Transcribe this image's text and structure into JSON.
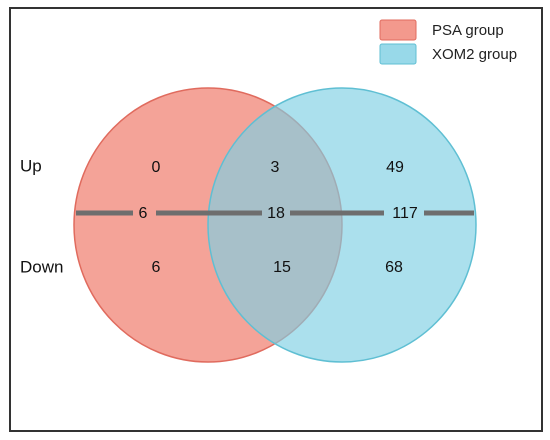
{
  "legend": {
    "items": [
      {
        "label": "PSA group",
        "color": "#F08070",
        "stroke": "#E06B5E"
      },
      {
        "label": "XOM2 group",
        "color": "#7ECFE3",
        "stroke": "#5FBFD3"
      }
    ]
  },
  "rows": {
    "up_label": "Up",
    "down_label": "Down"
  },
  "counts": {
    "up": {
      "psa_only": "0",
      "shared": "3",
      "xom2_only": "49"
    },
    "total": {
      "psa_only": "6",
      "shared": "18",
      "xom2_only": "117"
    },
    "down": {
      "psa_only": "6",
      "shared": "15",
      "xom2_only": "68"
    }
  },
  "colors": {
    "overlap": "#8FA8B0",
    "divider": "#6E6E6E",
    "frame": "#333333"
  }
}
